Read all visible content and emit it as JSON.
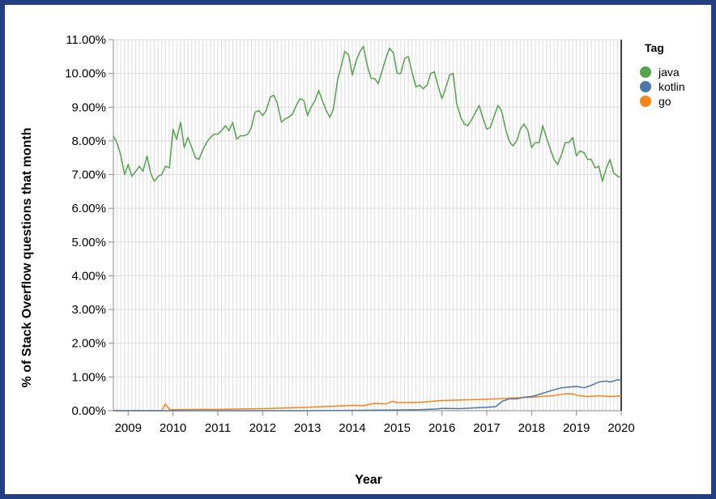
{
  "chart_data": {
    "type": "line",
    "xlabel": "Year",
    "ylabel": "% of Stack Overflow questions that month",
    "x_ticks": [
      "2009",
      "2010",
      "2011",
      "2012",
      "2013",
      "2014",
      "2015",
      "2016",
      "2017",
      "2018",
      "2019",
      "2020"
    ],
    "y_ticks": [
      "0.00%",
      "1.00%",
      "2.00%",
      "3.00%",
      "4.00%",
      "5.00%",
      "6.00%",
      "7.00%",
      "8.00%",
      "9.00%",
      "10.00%",
      "11.00%"
    ],
    "xlim": [
      2008.67,
      2020.0
    ],
    "ylim": [
      0,
      11
    ],
    "grid": true,
    "legend": {
      "title": "Tag",
      "placement": "right"
    },
    "series": [
      {
        "name": "java",
        "color": "#54a24b",
        "points": [
          [
            2008.67,
            8.15
          ],
          [
            2008.75,
            7.95
          ],
          [
            2008.83,
            7.6
          ],
          [
            2008.92,
            7.0
          ],
          [
            2009.0,
            7.3
          ],
          [
            2009.08,
            6.95
          ],
          [
            2009.17,
            7.1
          ],
          [
            2009.25,
            7.25
          ],
          [
            2009.33,
            7.1
          ],
          [
            2009.42,
            7.55
          ],
          [
            2009.5,
            7.05
          ],
          [
            2009.58,
            6.8
          ],
          [
            2009.67,
            6.95
          ],
          [
            2009.75,
            7.0
          ],
          [
            2009.83,
            7.25
          ],
          [
            2009.92,
            7.2
          ],
          [
            2010.0,
            8.35
          ],
          [
            2010.08,
            8.05
          ],
          [
            2010.17,
            8.55
          ],
          [
            2010.25,
            7.8
          ],
          [
            2010.33,
            8.1
          ],
          [
            2010.42,
            7.8
          ],
          [
            2010.5,
            7.5
          ],
          [
            2010.58,
            7.45
          ],
          [
            2010.67,
            7.75
          ],
          [
            2010.75,
            7.95
          ],
          [
            2010.83,
            8.1
          ],
          [
            2010.92,
            8.2
          ],
          [
            2011.0,
            8.2
          ],
          [
            2011.08,
            8.3
          ],
          [
            2011.17,
            8.45
          ],
          [
            2011.25,
            8.3
          ],
          [
            2011.33,
            8.55
          ],
          [
            2011.42,
            8.05
          ],
          [
            2011.5,
            8.15
          ],
          [
            2011.58,
            8.15
          ],
          [
            2011.67,
            8.2
          ],
          [
            2011.75,
            8.4
          ],
          [
            2011.83,
            8.85
          ],
          [
            2011.92,
            8.9
          ],
          [
            2012.0,
            8.75
          ],
          [
            2012.08,
            8.9
          ],
          [
            2012.17,
            9.3
          ],
          [
            2012.25,
            9.35
          ],
          [
            2012.33,
            9.1
          ],
          [
            2012.42,
            8.55
          ],
          [
            2012.5,
            8.65
          ],
          [
            2012.58,
            8.7
          ],
          [
            2012.67,
            8.8
          ],
          [
            2012.75,
            9.05
          ],
          [
            2012.83,
            9.25
          ],
          [
            2012.92,
            9.2
          ],
          [
            2013.0,
            8.75
          ],
          [
            2013.08,
            9.0
          ],
          [
            2013.17,
            9.2
          ],
          [
            2013.25,
            9.5
          ],
          [
            2013.33,
            9.2
          ],
          [
            2013.42,
            8.9
          ],
          [
            2013.5,
            8.7
          ],
          [
            2013.58,
            8.95
          ],
          [
            2013.67,
            9.8
          ],
          [
            2013.75,
            10.2
          ],
          [
            2013.83,
            10.65
          ],
          [
            2013.92,
            10.55
          ],
          [
            2014.0,
            9.95
          ],
          [
            2014.08,
            10.35
          ],
          [
            2014.17,
            10.65
          ],
          [
            2014.25,
            10.8
          ],
          [
            2014.33,
            10.25
          ],
          [
            2014.42,
            9.85
          ],
          [
            2014.5,
            9.85
          ],
          [
            2014.58,
            9.7
          ],
          [
            2014.67,
            10.1
          ],
          [
            2014.75,
            10.45
          ],
          [
            2014.83,
            10.75
          ],
          [
            2014.92,
            10.6
          ],
          [
            2015.0,
            10.0
          ],
          [
            2015.08,
            10.0
          ],
          [
            2015.17,
            10.45
          ],
          [
            2015.25,
            10.5
          ],
          [
            2015.33,
            10.05
          ],
          [
            2015.42,
            9.6
          ],
          [
            2015.5,
            9.65
          ],
          [
            2015.58,
            9.55
          ],
          [
            2015.67,
            9.65
          ],
          [
            2015.75,
            10.0
          ],
          [
            2015.83,
            10.05
          ],
          [
            2015.92,
            9.6
          ],
          [
            2016.0,
            9.25
          ],
          [
            2016.08,
            9.55
          ],
          [
            2016.17,
            9.95
          ],
          [
            2016.25,
            10.0
          ],
          [
            2016.33,
            9.1
          ],
          [
            2016.42,
            8.7
          ],
          [
            2016.5,
            8.5
          ],
          [
            2016.58,
            8.45
          ],
          [
            2016.67,
            8.65
          ],
          [
            2016.75,
            8.85
          ],
          [
            2016.83,
            9.05
          ],
          [
            2016.92,
            8.65
          ],
          [
            2017.0,
            8.35
          ],
          [
            2017.08,
            8.4
          ],
          [
            2017.17,
            8.75
          ],
          [
            2017.25,
            9.05
          ],
          [
            2017.33,
            8.9
          ],
          [
            2017.42,
            8.35
          ],
          [
            2017.5,
            8.0
          ],
          [
            2017.58,
            7.85
          ],
          [
            2017.67,
            8.0
          ],
          [
            2017.75,
            8.35
          ],
          [
            2017.83,
            8.5
          ],
          [
            2017.92,
            8.3
          ],
          [
            2018.0,
            7.8
          ],
          [
            2018.08,
            7.95
          ],
          [
            2018.17,
            7.95
          ],
          [
            2018.25,
            8.45
          ],
          [
            2018.33,
            8.1
          ],
          [
            2018.42,
            7.75
          ],
          [
            2018.5,
            7.45
          ],
          [
            2018.58,
            7.3
          ],
          [
            2018.67,
            7.6
          ],
          [
            2018.75,
            7.95
          ],
          [
            2018.83,
            7.95
          ],
          [
            2018.92,
            8.1
          ],
          [
            2019.0,
            7.55
          ],
          [
            2019.08,
            7.7
          ],
          [
            2019.17,
            7.65
          ],
          [
            2019.25,
            7.45
          ],
          [
            2019.33,
            7.45
          ],
          [
            2019.42,
            7.2
          ],
          [
            2019.5,
            7.25
          ],
          [
            2019.58,
            6.8
          ],
          [
            2019.67,
            7.2
          ],
          [
            2019.75,
            7.45
          ],
          [
            2019.83,
            7.05
          ],
          [
            2019.92,
            6.95
          ],
          [
            2020.0,
            6.9
          ]
        ]
      },
      {
        "name": "kotlin",
        "color": "#4c78a8",
        "points": [
          [
            2008.67,
            0.0
          ],
          [
            2011.0,
            0.0
          ],
          [
            2013.0,
            0.0
          ],
          [
            2014.0,
            0.01
          ],
          [
            2015.0,
            0.02
          ],
          [
            2015.5,
            0.03
          ],
          [
            2015.9,
            0.05
          ],
          [
            2016.0,
            0.07
          ],
          [
            2016.4,
            0.06
          ],
          [
            2016.8,
            0.09
          ],
          [
            2017.0,
            0.1
          ],
          [
            2017.2,
            0.12
          ],
          [
            2017.35,
            0.28
          ],
          [
            2017.5,
            0.35
          ],
          [
            2017.67,
            0.35
          ],
          [
            2017.83,
            0.4
          ],
          [
            2018.0,
            0.42
          ],
          [
            2018.17,
            0.48
          ],
          [
            2018.33,
            0.55
          ],
          [
            2018.5,
            0.62
          ],
          [
            2018.67,
            0.68
          ],
          [
            2018.83,
            0.7
          ],
          [
            2019.0,
            0.72
          ],
          [
            2019.17,
            0.68
          ],
          [
            2019.33,
            0.75
          ],
          [
            2019.5,
            0.85
          ],
          [
            2019.67,
            0.88
          ],
          [
            2019.75,
            0.85
          ],
          [
            2019.83,
            0.88
          ],
          [
            2019.92,
            0.92
          ],
          [
            2020.0,
            0.9
          ]
        ]
      },
      {
        "name": "go",
        "color": "#f58518",
        "points": [
          [
            2008.67,
            0.0
          ],
          [
            2009.75,
            0.0
          ],
          [
            2009.83,
            0.2
          ],
          [
            2009.92,
            0.04
          ],
          [
            2010.0,
            0.03
          ],
          [
            2010.5,
            0.04
          ],
          [
            2011.0,
            0.04
          ],
          [
            2011.5,
            0.05
          ],
          [
            2012.0,
            0.06
          ],
          [
            2012.5,
            0.08
          ],
          [
            2013.0,
            0.1
          ],
          [
            2013.5,
            0.13
          ],
          [
            2014.0,
            0.16
          ],
          [
            2014.25,
            0.15
          ],
          [
            2014.5,
            0.22
          ],
          [
            2014.75,
            0.2
          ],
          [
            2014.9,
            0.28
          ],
          [
            2015.0,
            0.24
          ],
          [
            2015.5,
            0.25
          ],
          [
            2016.0,
            0.3
          ],
          [
            2016.5,
            0.32
          ],
          [
            2017.0,
            0.34
          ],
          [
            2017.5,
            0.37
          ],
          [
            2018.0,
            0.4
          ],
          [
            2018.5,
            0.45
          ],
          [
            2018.75,
            0.5
          ],
          [
            2018.92,
            0.5
          ],
          [
            2019.0,
            0.46
          ],
          [
            2019.25,
            0.42
          ],
          [
            2019.5,
            0.44
          ],
          [
            2019.75,
            0.42
          ],
          [
            2020.0,
            0.44
          ]
        ]
      }
    ]
  }
}
